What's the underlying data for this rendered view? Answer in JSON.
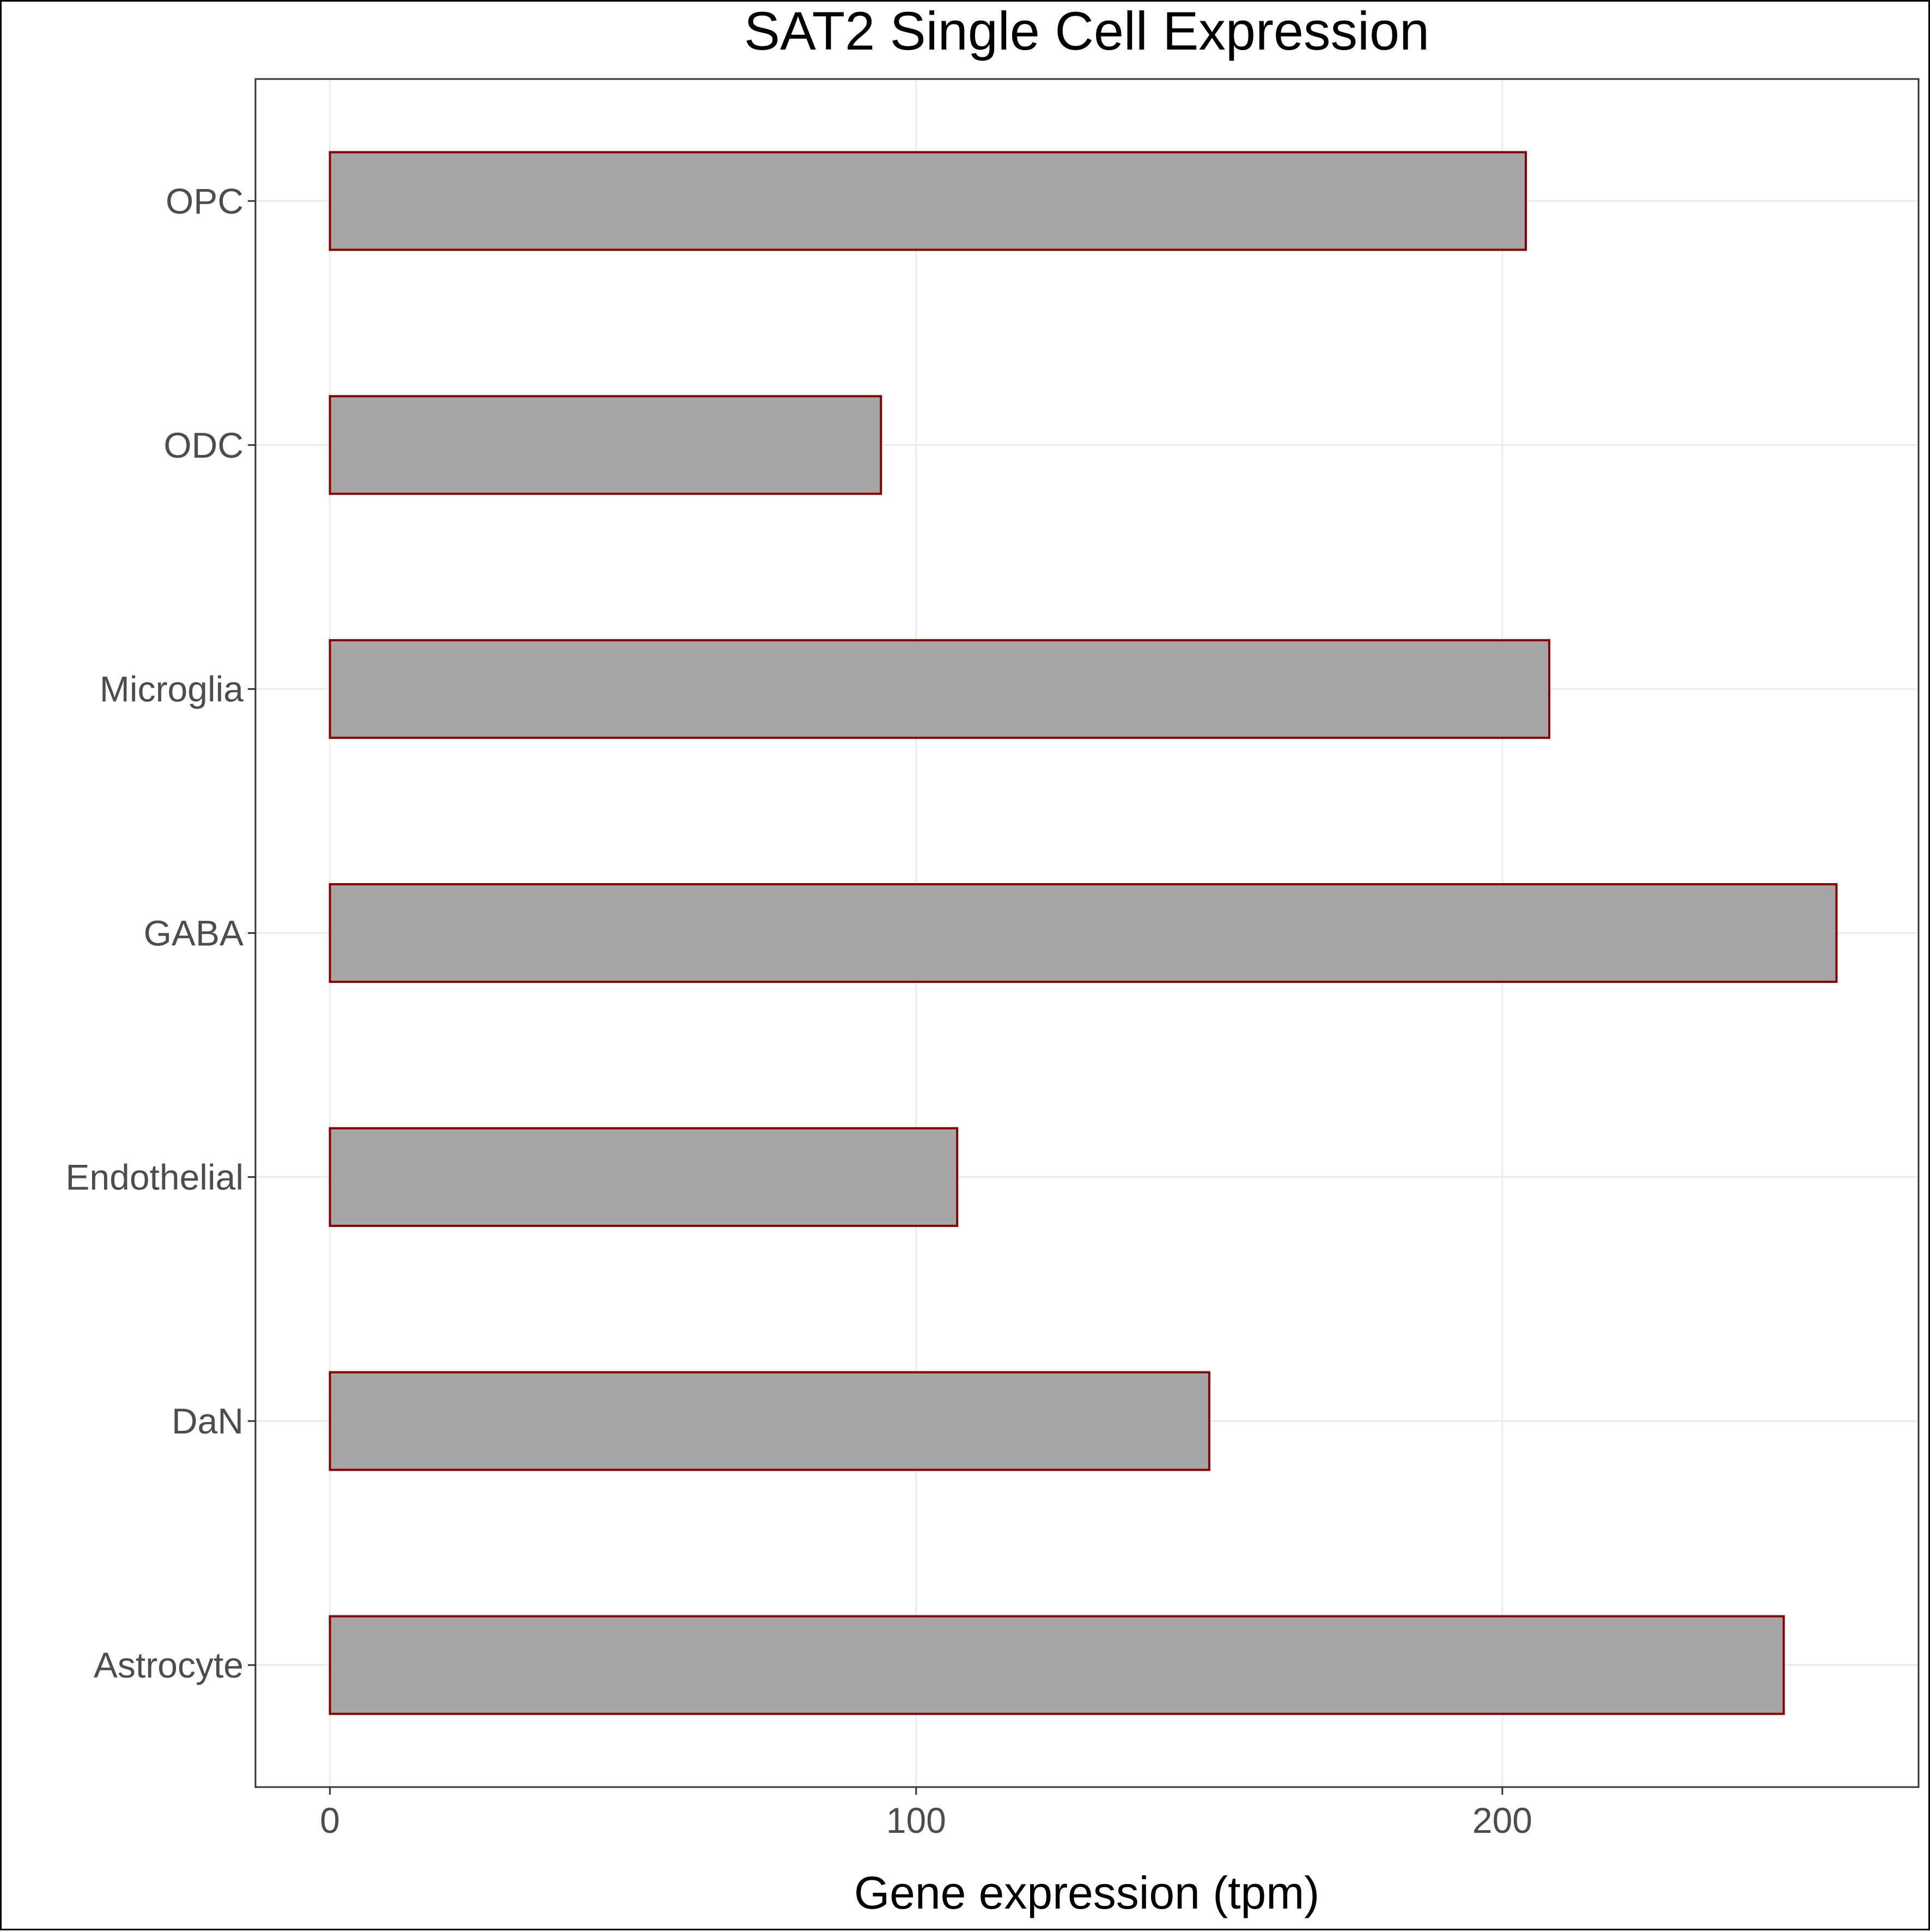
{
  "chart_data": {
    "type": "bar",
    "orientation": "horizontal",
    "title": "SAT2 Single Cell Expression",
    "xlabel": "Gene expression (tpm)",
    "ylabel": "",
    "categories": [
      "Astrocyte",
      "DaN",
      "Endothelial",
      "GABA",
      "Microglia",
      "ODC",
      "OPC"
    ],
    "values": [
      248,
      150,
      107,
      257,
      208,
      94,
      204
    ],
    "xlim": [
      -12.7,
      271
    ],
    "xticks": [
      0,
      100,
      200
    ],
    "grid": true,
    "legend": "none",
    "bar_fill": "#a6a6a6",
    "bar_outline": "#8b0000",
    "grid_color": "#ebebeb",
    "tick_label_color": "#4d4d4d"
  }
}
